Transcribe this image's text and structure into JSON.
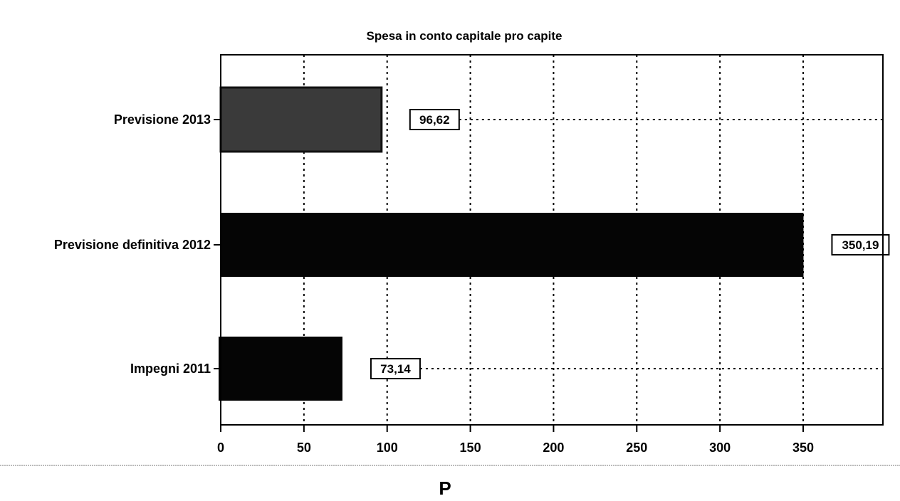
{
  "chart_data": {
    "type": "bar",
    "orientation": "horizontal",
    "title": "Spesa in conto capitale pro capite",
    "categories": [
      "Previsione 2013",
      "Previsione definitiva 2012",
      "Impegni 2011"
    ],
    "values": [
      96.62,
      350.19,
      73.14
    ],
    "value_labels": [
      "96,62",
      "350,19",
      "73,14"
    ],
    "xlim": [
      0,
      400
    ],
    "x_ticks": [
      0,
      50,
      100,
      150,
      200,
      250,
      300,
      350
    ],
    "x_tick_labels": [
      "0",
      "50",
      "100",
      "150",
      "200",
      "250",
      "300",
      "350"
    ],
    "xlabel": "",
    "ylabel": "",
    "grid": true,
    "bar_colors": [
      "#3a3a3a",
      "#050505",
      "#050505"
    ]
  },
  "footer": {
    "letter": "P"
  }
}
